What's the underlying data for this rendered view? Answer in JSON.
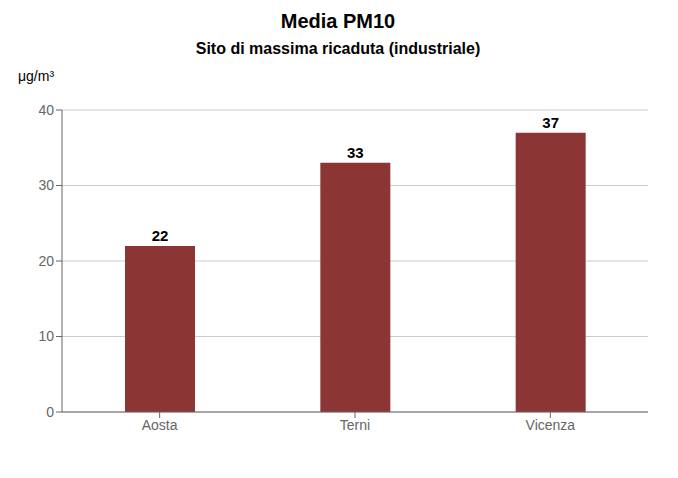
{
  "chart_data": {
    "type": "bar",
    "title": "Media PM10",
    "subtitle": "Sito di massima ricaduta (industriale)",
    "ylabel": "μg/m³",
    "categories": [
      "Aosta",
      "Terni",
      "Vicenza"
    ],
    "values": [
      22,
      33,
      37
    ],
    "color": "#8B3535",
    "ylim": [
      0,
      40
    ],
    "yticks": [
      0,
      10,
      20,
      30,
      40
    ],
    "grid": true,
    "data_labels": true
  }
}
